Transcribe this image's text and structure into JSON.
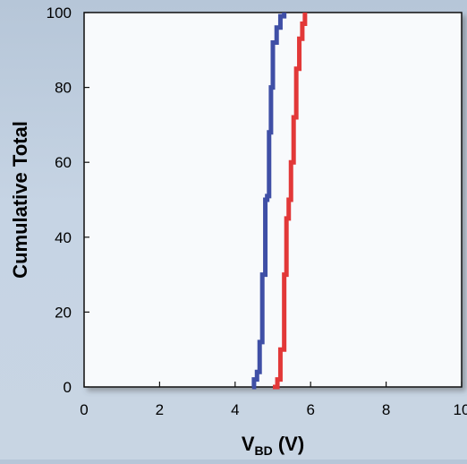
{
  "chart_data": {
    "type": "line",
    "title": "",
    "xlabel_main": "V",
    "xlabel_sub": "BD",
    "xlabel_unit": " (V)",
    "ylabel": "Cumulative Total",
    "xlim": [
      0,
      10
    ],
    "ylim": [
      0,
      100
    ],
    "x_ticks": [
      "0",
      "2",
      "4",
      "6",
      "8",
      "10"
    ],
    "y_ticks": [
      "0",
      "20",
      "40",
      "60",
      "80",
      "100"
    ],
    "grid": false,
    "legend": "none",
    "series": [
      {
        "color": "#3f4fa6",
        "x": [
          4.45,
          4.5,
          4.58,
          4.65,
          4.72,
          4.8,
          4.85,
          4.9,
          4.95,
          5.0,
          5.1,
          5.2,
          5.3
        ],
        "y": [
          0,
          2,
          4,
          12,
          30,
          50,
          51,
          68,
          80,
          92,
          96,
          99,
          100
        ]
      },
      {
        "color": "#e23838",
        "x": [
          5.0,
          5.12,
          5.2,
          5.3,
          5.36,
          5.42,
          5.48,
          5.55,
          5.62,
          5.7,
          5.78,
          5.85
        ],
        "y": [
          0,
          2,
          10,
          30,
          45,
          50,
          60,
          72,
          85,
          93,
          97,
          100
        ]
      }
    ]
  }
}
